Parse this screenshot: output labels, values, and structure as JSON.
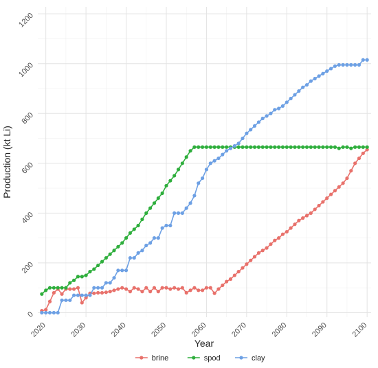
{
  "chart_data": {
    "type": "line",
    "xlabel": "Year",
    "ylabel": "Production (kt Li)",
    "xlim": [
      2018,
      2101
    ],
    "ylim": [
      -18,
      1228
    ],
    "xticks": [
      2020,
      2030,
      2040,
      2050,
      2060,
      2070,
      2080,
      2090,
      2100
    ],
    "yticks": [
      0,
      200,
      400,
      600,
      800,
      1000,
      1200
    ],
    "grid": true,
    "legend_position": "bottom",
    "x": [
      2019,
      2020,
      2021,
      2022,
      2023,
      2024,
      2025,
      2026,
      2027,
      2028,
      2029,
      2030,
      2031,
      2032,
      2033,
      2034,
      2035,
      2036,
      2037,
      2038,
      2039,
      2040,
      2041,
      2042,
      2043,
      2044,
      2045,
      2046,
      2047,
      2048,
      2049,
      2050,
      2051,
      2052,
      2053,
      2054,
      2055,
      2056,
      2057,
      2058,
      2059,
      2060,
      2061,
      2062,
      2063,
      2064,
      2065,
      2066,
      2067,
      2068,
      2069,
      2070,
      2071,
      2072,
      2073,
      2074,
      2075,
      2076,
      2077,
      2078,
      2079,
      2080,
      2081,
      2082,
      2083,
      2084,
      2085,
      2086,
      2087,
      2088,
      2089,
      2090,
      2091,
      2092,
      2093,
      2094,
      2095,
      2096,
      2097,
      2098,
      2099,
      2100
    ],
    "series": [
      {
        "name": "brine",
        "color": "#e8716b",
        "values": [
          8,
          12,
          45,
          80,
          95,
          75,
          95,
          95,
          95,
          100,
          40,
          60,
          78,
          78,
          80,
          80,
          82,
          85,
          90,
          95,
          100,
          95,
          85,
          100,
          95,
          85,
          100,
          85,
          100,
          85,
          100,
          100,
          95,
          100,
          95,
          100,
          80,
          90,
          100,
          90,
          90,
          100,
          100,
          78,
          95,
          110,
          125,
          135,
          150,
          165,
          180,
          195,
          210,
          225,
          240,
          250,
          260,
          275,
          290,
          300,
          315,
          325,
          340,
          355,
          370,
          380,
          390,
          400,
          415,
          430,
          445,
          460,
          475,
          490,
          505,
          520,
          540,
          570,
          600,
          620,
          640,
          655
        ]
      },
      {
        "name": "spod",
        "color": "#2eae3c",
        "values": [
          75,
          90,
          100,
          100,
          100,
          100,
          100,
          120,
          130,
          145,
          145,
          150,
          165,
          175,
          190,
          205,
          220,
          235,
          250,
          265,
          280,
          300,
          320,
          335,
          350,
          375,
          400,
          420,
          440,
          460,
          480,
          510,
          530,
          550,
          575,
          600,
          625,
          650,
          665,
          665,
          665,
          665,
          665,
          665,
          665,
          665,
          665,
          665,
          665,
          665,
          665,
          665,
          665,
          665,
          665,
          665,
          665,
          665,
          665,
          665,
          665,
          665,
          665,
          665,
          665,
          665,
          665,
          665,
          665,
          665,
          665,
          665,
          665,
          665,
          660,
          665,
          665,
          660,
          665,
          665,
          665,
          665
        ]
      },
      {
        "name": "clay",
        "color": "#6da0e4",
        "values": [
          0,
          0,
          0,
          0,
          0,
          50,
          50,
          50,
          70,
          70,
          70,
          70,
          70,
          100,
          100,
          100,
          120,
          120,
          140,
          170,
          170,
          170,
          220,
          220,
          240,
          250,
          270,
          280,
          300,
          300,
          340,
          350,
          350,
          400,
          400,
          400,
          420,
          440,
          470,
          520,
          540,
          575,
          600,
          610,
          620,
          635,
          650,
          660,
          670,
          680,
          700,
          720,
          735,
          750,
          765,
          780,
          790,
          800,
          815,
          820,
          830,
          845,
          860,
          875,
          890,
          905,
          915,
          930,
          940,
          950,
          960,
          970,
          980,
          990,
          995,
          995,
          995,
          995,
          995,
          995,
          1015,
          1015
        ]
      }
    ]
  }
}
